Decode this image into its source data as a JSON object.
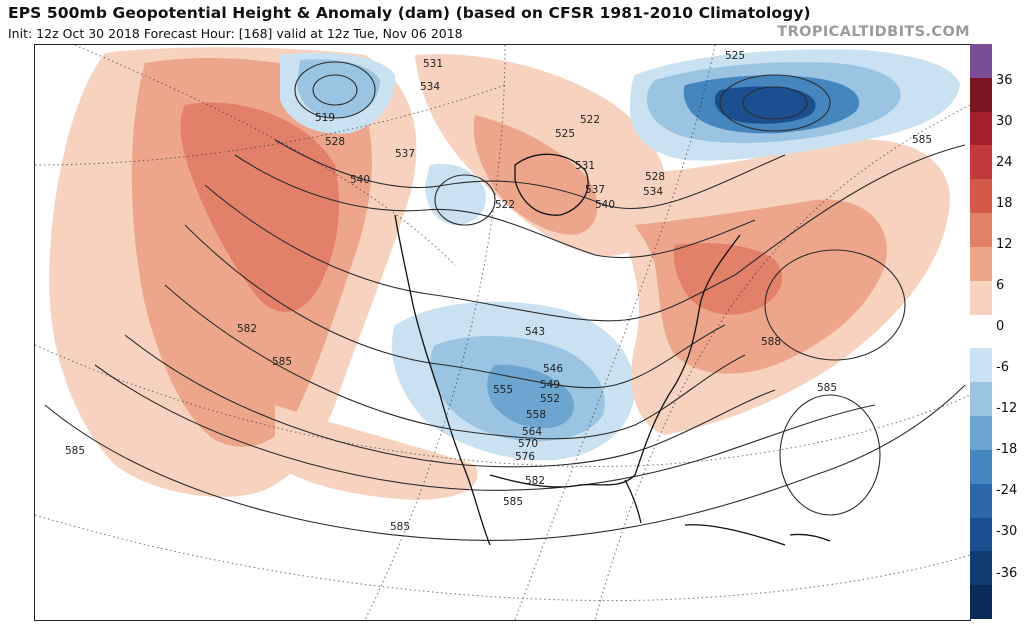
{
  "header": {
    "title": "EPS 500mb Geopotential Height & Anomaly (dam) (based on CFSR 1981-2010 Climatology)",
    "subtitle": "Init: 12z Oct 30 2018   Forecast Hour: [168]   valid at 12z Tue, Nov 06 2018",
    "brand": "TROPICALTIDBITS.COM"
  },
  "colorbar": {
    "labels": [
      "36",
      "30",
      "24",
      "18",
      "12",
      "6",
      "0",
      "-6",
      "-12",
      "-18",
      "-24",
      "-30",
      "-36"
    ],
    "colors": [
      "#7b4d94",
      "#7a1420",
      "#a31f2a",
      "#c2393b",
      "#d45a48",
      "#e2806a",
      "#eda68c",
      "#f7d2bf",
      "#ffffff",
      "#c9e1f0",
      "#9ac4e1",
      "#6ca5cf",
      "#4586bf",
      "#2c68a9",
      "#1b4f90",
      "#123a73",
      "#0b2a57"
    ]
  },
  "map": {
    "region": "North America",
    "anomaly_colors": {
      "positive_light": "#f7d2bf",
      "positive_mid": "#eda68c",
      "positive_strong": "#e2806a",
      "negative_light": "#c9e1f0",
      "negative_mid": "#9ac4e1",
      "negative_strong": "#4586bf",
      "negative_deep": "#1b4f90"
    },
    "contour_labels": [
      "531",
      "534",
      "525",
      "522",
      "525",
      "519",
      "528",
      "537",
      "540",
      "531",
      "537",
      "534",
      "528",
      "540",
      "522",
      "585",
      "582",
      "585",
      "543",
      "546",
      "549",
      "552",
      "555",
      "558",
      "564",
      "570",
      "576",
      "582",
      "585",
      "588",
      "585",
      "585",
      "585"
    ]
  }
}
